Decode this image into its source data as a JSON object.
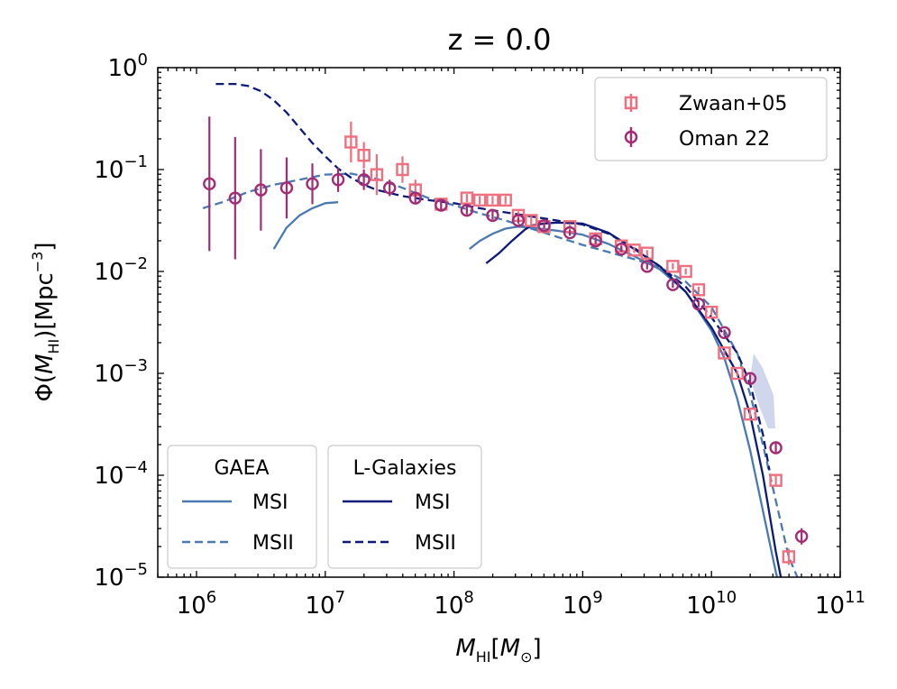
{
  "chart_data": {
    "type": "line",
    "title": "z = 0.0",
    "xlabel": {
      "main": "M",
      "sub": "HI",
      "bracket_open": "[",
      "unit_main": "M",
      "unit_sub": "⊙",
      "bracket_close": "]"
    },
    "ylabel": {
      "pre": "Φ(",
      "main": "M",
      "sub": "HI",
      "post": ")[Mpc",
      "sup": "−3",
      "close": "]"
    },
    "x_scale": "log",
    "y_scale": "log",
    "xlim": [
      500000,
      100000000000
    ],
    "ylim": [
      1e-05,
      1
    ],
    "x_ticks": [
      {
        "base": "10",
        "exp": "6",
        "value": 1000000
      },
      {
        "base": "10",
        "exp": "7",
        "value": 10000000
      },
      {
        "base": "10",
        "exp": "8",
        "value": 100000000
      },
      {
        "base": "10",
        "exp": "9",
        "value": 1000000000
      },
      {
        "base": "10",
        "exp": "10",
        "value": 10000000000
      },
      {
        "base": "10",
        "exp": "11",
        "value": 100000000000
      }
    ],
    "y_ticks": [
      {
        "base": "10",
        "exp": "0",
        "value": 1
      },
      {
        "base": "10",
        "exp": "−1",
        "value": 0.1
      },
      {
        "base": "10",
        "exp": "−2",
        "value": 0.01
      },
      {
        "base": "10",
        "exp": "−3",
        "value": 0.001
      },
      {
        "base": "10",
        "exp": "−4",
        "value": 0.0001
      },
      {
        "base": "10",
        "exp": "−5",
        "value": 1e-05
      }
    ],
    "series": [
      {
        "name": "GAEA MSI",
        "color": "#4a7ab0",
        "style": "solid",
        "points": [
          [
            6.6,
            -1.78
          ],
          [
            6.7,
            -1.57
          ],
          [
            6.8,
            -1.45
          ],
          [
            6.9,
            -1.38
          ],
          [
            7.0,
            -1.33
          ],
          [
            7.1,
            -1.32
          ]
        ]
      },
      {
        "name": "GAEA MSI",
        "color": "#4a7ab0",
        "style": "solid",
        "points": [
          [
            8.12,
            -1.78
          ],
          [
            8.2,
            -1.7
          ],
          [
            8.3,
            -1.63
          ],
          [
            8.4,
            -1.58
          ],
          [
            8.5,
            -1.56
          ],
          [
            8.6,
            -1.57
          ],
          [
            8.8,
            -1.6
          ],
          [
            9.0,
            -1.64
          ],
          [
            9.2,
            -1.73
          ],
          [
            9.4,
            -1.85
          ],
          [
            9.6,
            -1.98
          ],
          [
            9.8,
            -2.2
          ],
          [
            10.0,
            -2.58
          ],
          [
            10.1,
            -2.85
          ],
          [
            10.2,
            -3.25
          ],
          [
            10.3,
            -3.75
          ],
          [
            10.4,
            -4.35
          ],
          [
            10.5,
            -4.95
          ],
          [
            10.55,
            -5.2
          ]
        ]
      },
      {
        "name": "GAEA MSII",
        "color": "#4a7ab0",
        "style": "dashed",
        "points": [
          [
            6.05,
            -1.38
          ],
          [
            6.2,
            -1.32
          ],
          [
            6.4,
            -1.22
          ],
          [
            6.6,
            -1.15
          ],
          [
            6.8,
            -1.1
          ],
          [
            7.0,
            -1.05
          ],
          [
            7.2,
            -1.04
          ],
          [
            7.4,
            -1.09
          ],
          [
            7.6,
            -1.18
          ],
          [
            7.8,
            -1.28
          ],
          [
            8.0,
            -1.35
          ],
          [
            8.2,
            -1.43
          ],
          [
            8.4,
            -1.5
          ],
          [
            8.6,
            -1.58
          ],
          [
            8.8,
            -1.66
          ],
          [
            9.0,
            -1.74
          ],
          [
            9.2,
            -1.81
          ],
          [
            9.4,
            -1.88
          ],
          [
            9.6,
            -1.96
          ],
          [
            9.8,
            -2.1
          ],
          [
            10.0,
            -2.35
          ],
          [
            10.2,
            -2.8
          ],
          [
            10.3,
            -3.2
          ],
          [
            10.4,
            -3.7
          ],
          [
            10.5,
            -4.25
          ],
          [
            10.6,
            -4.8
          ],
          [
            10.7,
            -5.1
          ]
        ]
      },
      {
        "name": "L-Galaxies MSI",
        "color": "#0d1a78",
        "style": "solid",
        "points": [
          [
            8.25,
            -1.92
          ],
          [
            8.35,
            -1.82
          ],
          [
            8.45,
            -1.7
          ],
          [
            8.55,
            -1.59
          ],
          [
            8.6,
            -1.55
          ],
          [
            8.7,
            -1.53
          ],
          [
            8.8,
            -1.52
          ],
          [
            9.0,
            -1.53
          ],
          [
            9.2,
            -1.62
          ],
          [
            9.4,
            -1.78
          ],
          [
            9.6,
            -1.95
          ],
          [
            9.8,
            -2.2
          ],
          [
            10.0,
            -2.55
          ],
          [
            10.2,
            -3.0
          ],
          [
            10.3,
            -3.4
          ],
          [
            10.4,
            -4.0
          ],
          [
            10.5,
            -4.75
          ],
          [
            10.57,
            -5.2
          ]
        ]
      },
      {
        "name": "L-Galaxies MSII",
        "color": "#0d1a78",
        "style": "dashed",
        "points": [
          [
            6.15,
            -0.16
          ],
          [
            6.3,
            -0.16
          ],
          [
            6.4,
            -0.18
          ],
          [
            6.5,
            -0.23
          ],
          [
            6.6,
            -0.32
          ],
          [
            6.7,
            -0.44
          ],
          [
            6.8,
            -0.59
          ],
          [
            6.9,
            -0.74
          ],
          [
            7.0,
            -0.87
          ],
          [
            7.1,
            -0.99
          ],
          [
            7.2,
            -1.08
          ],
          [
            7.3,
            -1.15
          ],
          [
            7.4,
            -1.2
          ],
          [
            7.5,
            -1.23
          ],
          [
            7.6,
            -1.26
          ],
          [
            7.8,
            -1.3
          ],
          [
            8.0,
            -1.33
          ],
          [
            8.2,
            -1.38
          ],
          [
            8.4,
            -1.42
          ],
          [
            8.6,
            -1.46
          ],
          [
            8.8,
            -1.5
          ],
          [
            9.0,
            -1.54
          ],
          [
            9.2,
            -1.63
          ],
          [
            9.4,
            -1.77
          ],
          [
            9.6,
            -1.95
          ],
          [
            9.8,
            -2.15
          ],
          [
            10.0,
            -2.45
          ],
          [
            10.2,
            -2.8
          ],
          [
            10.3,
            -3.1
          ],
          [
            10.4,
            -3.6
          ],
          [
            10.45,
            -3.95
          ]
        ]
      }
    ],
    "errorbars": [
      {
        "name": "Zwaan+05",
        "marker": "square",
        "color": "#ef6f7e",
        "points": [
          [
            7.2,
            -0.73,
            0.2
          ],
          [
            7.3,
            -0.86,
            0.13
          ],
          [
            7.4,
            -1.05,
            0.2
          ],
          [
            7.6,
            -1.0,
            0.13
          ],
          [
            7.7,
            -1.2,
            0.1
          ],
          [
            7.9,
            -1.34,
            0.06
          ],
          [
            8.1,
            -1.28,
            0.04
          ],
          [
            8.2,
            -1.3,
            0.04
          ],
          [
            8.3,
            -1.3,
            0.04
          ],
          [
            8.4,
            -1.3,
            0.04
          ],
          [
            8.5,
            -1.45,
            0.04
          ],
          [
            8.6,
            -1.5,
            0.04
          ],
          [
            8.7,
            -1.56,
            0.03
          ],
          [
            8.9,
            -1.56,
            0.03
          ],
          [
            9.1,
            -1.68,
            0.03
          ],
          [
            9.3,
            -1.75,
            0.03
          ],
          [
            9.4,
            -1.79,
            0.03
          ],
          [
            9.5,
            -1.82,
            0.03
          ],
          [
            9.7,
            -1.95,
            0.03
          ],
          [
            9.8,
            -2.0,
            0.03
          ],
          [
            9.9,
            -2.18,
            0.03
          ],
          [
            10.0,
            -2.4,
            0.03
          ],
          [
            10.1,
            -2.8,
            0.03
          ],
          [
            10.2,
            -3.0,
            0.03
          ],
          [
            10.3,
            -3.4,
            0.04
          ],
          [
            10.5,
            -4.05,
            0.05
          ],
          [
            10.6,
            -4.8,
            0.08
          ]
        ]
      },
      {
        "name": "Oman 22",
        "marker": "circle",
        "color": "#a32d74",
        "points": [
          [
            6.1,
            -1.14,
            0.66
          ],
          [
            6.3,
            -1.28,
            0.6
          ],
          [
            6.5,
            -1.2,
            0.4
          ],
          [
            6.7,
            -1.18,
            0.3
          ],
          [
            6.9,
            -1.14,
            0.2
          ],
          [
            7.1,
            -1.1,
            0.12
          ],
          [
            7.3,
            -1.1,
            0.1
          ],
          [
            7.5,
            -1.18,
            0.08
          ],
          [
            7.7,
            -1.28,
            0.06
          ],
          [
            7.9,
            -1.35,
            0.05
          ],
          [
            8.1,
            -1.4,
            0.04
          ],
          [
            8.3,
            -1.45,
            0.04
          ],
          [
            8.5,
            -1.5,
            0.03
          ],
          [
            8.7,
            -1.55,
            0.03
          ],
          [
            8.9,
            -1.62,
            0.03
          ],
          [
            9.1,
            -1.7,
            0.03
          ],
          [
            9.3,
            -1.78,
            0.03
          ],
          [
            9.5,
            -1.95,
            0.03
          ],
          [
            9.7,
            -2.13,
            0.03
          ],
          [
            9.9,
            -2.32,
            0.03
          ],
          [
            10.1,
            -2.6,
            0.03
          ],
          [
            10.3,
            -3.05,
            0.04
          ],
          [
            10.5,
            -3.73,
            0.05
          ],
          [
            10.7,
            -4.6,
            0.08
          ]
        ]
      }
    ],
    "legend_top_right": {
      "entries": [
        {
          "label": "Zwaan+05"
        },
        {
          "label": "Oman 22"
        }
      ]
    },
    "legend_gaea": {
      "title": "GAEA",
      "entries": [
        {
          "label": "MSI"
        },
        {
          "label": "MSII"
        }
      ]
    },
    "legend_lgal": {
      "title": "L-Galaxies",
      "entries": [
        {
          "label": "MSI"
        },
        {
          "label": "MSII"
        }
      ]
    }
  }
}
